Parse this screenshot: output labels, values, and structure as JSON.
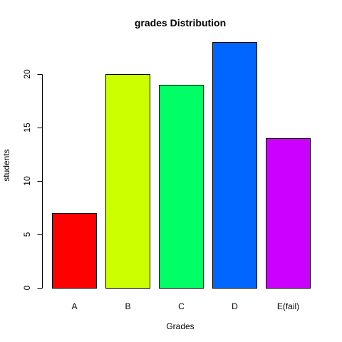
{
  "chart_data": {
    "type": "bar",
    "title": "grades Distribution",
    "xlabel": "Grades",
    "ylabel": "students",
    "categories": [
      "A",
      "B",
      "C",
      "D",
      "E(fail)"
    ],
    "values": [
      7,
      20,
      19,
      23,
      14
    ],
    "colors": [
      "#ff0000",
      "#ccff00",
      "#00ff66",
      "#0066ff",
      "#cc00ff"
    ],
    "ylim": [
      0,
      23
    ],
    "yticks": [
      0,
      5,
      10,
      15,
      20
    ],
    "grid": false,
    "legend": "none"
  }
}
